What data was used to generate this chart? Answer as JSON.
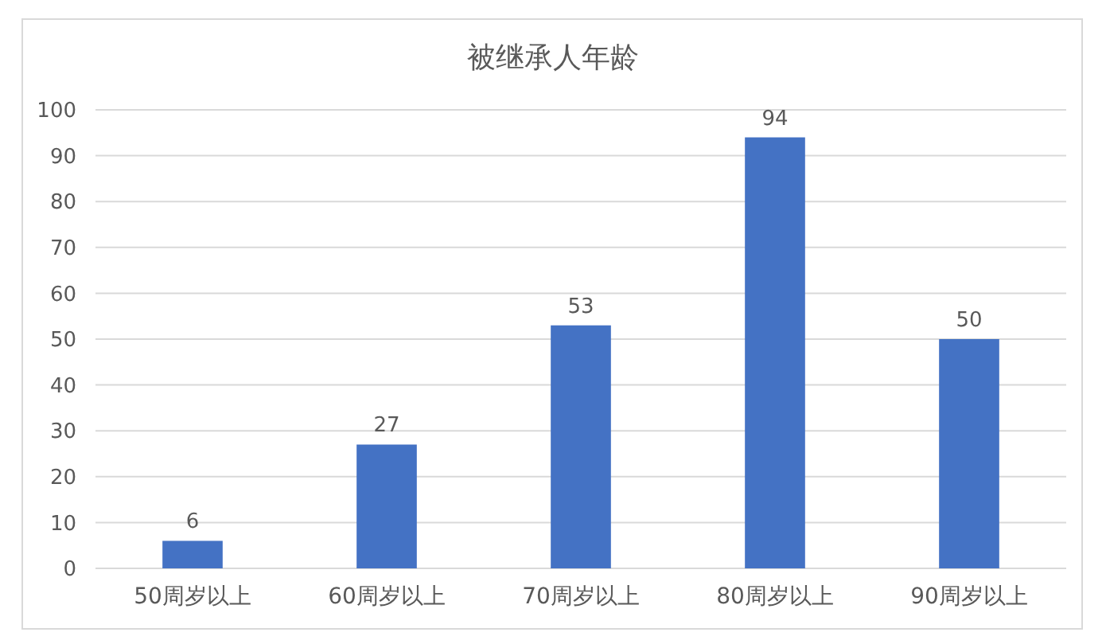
{
  "chart_data": {
    "type": "bar",
    "title": "被继承人年龄",
    "categories": [
      "50周岁以上",
      "60周岁以上",
      "70周岁以上",
      "80周岁以上",
      "90周岁以上"
    ],
    "values": [
      6,
      27,
      53,
      94,
      50
    ],
    "color": "#4472c4",
    "ylim": [
      0,
      100
    ],
    "yticks": [
      0,
      10,
      20,
      30,
      40,
      50,
      60,
      70,
      80,
      90,
      100
    ],
    "grid": "y",
    "data_labels": true
  }
}
